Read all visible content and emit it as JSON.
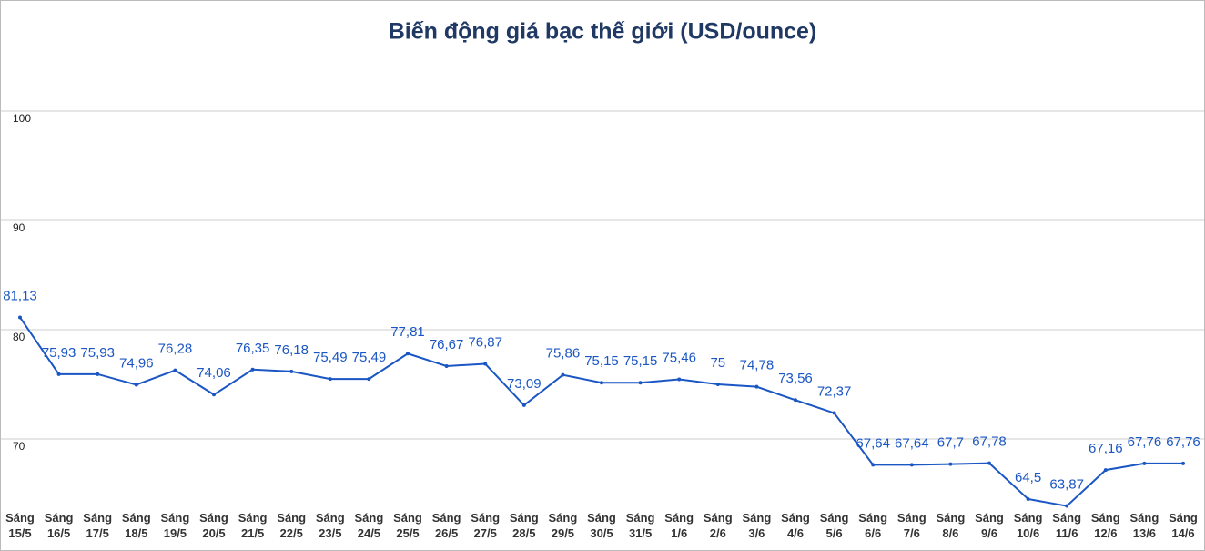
{
  "chart_data": {
    "type": "line",
    "title": "Biến động giá bạc thế giới (USD/ounce)",
    "categories": [
      "Sáng 15/5",
      "Sáng 16/5",
      "Sáng 17/5",
      "Sáng 18/5",
      "Sáng 19/5",
      "Sáng 20/5",
      "Sáng 21/5",
      "Sáng 22/5",
      "Sáng 23/5",
      "Sáng 24/5",
      "Sáng 25/5",
      "Sáng 26/5",
      "Sáng 27/5",
      "Sáng 28/5",
      "Sáng 29/5",
      "Sáng 30/5",
      "Sáng 31/5",
      "Sáng 1/6",
      "Sáng 2/6",
      "Sáng 3/6",
      "Sáng 4/6",
      "Sáng 5/6",
      "Sáng 6/6",
      "Sáng 7/6",
      "Sáng 8/6",
      "Sáng 9/6",
      "Sáng 10/6",
      "Sáng 11/6",
      "Sáng 12/6",
      "Sáng 13/6",
      "Sáng 14/6"
    ],
    "values": [
      81.13,
      75.93,
      75.93,
      74.96,
      76.28,
      74.06,
      76.35,
      76.18,
      75.49,
      75.49,
      77.81,
      76.67,
      76.87,
      73.09,
      75.86,
      75.15,
      75.15,
      75.46,
      75,
      74.78,
      73.56,
      72.37,
      67.64,
      67.64,
      67.7,
      67.78,
      64.5,
      63.87,
      67.16,
      67.76,
      67.76
    ],
    "value_labels": [
      "81,13",
      "75,93",
      "75,93",
      "74,96",
      "76,28",
      "74,06",
      "76,35",
      "76,18",
      "75,49",
      "75,49",
      "77,81",
      "76,67",
      "76,87",
      "73,09",
      "75,86",
      "75,15",
      "75,15",
      "75,46",
      "75",
      "74,78",
      "73,56",
      "72,37",
      "67,64",
      "67,64",
      "67,7",
      "67,78",
      "64,5",
      "63,87",
      "67,16",
      "67,76",
      "67,76"
    ],
    "color": "#1a56c4",
    "ylim": [
      60,
      110
    ],
    "yticks": [
      70,
      80,
      90,
      100
    ],
    "grid": true
  }
}
